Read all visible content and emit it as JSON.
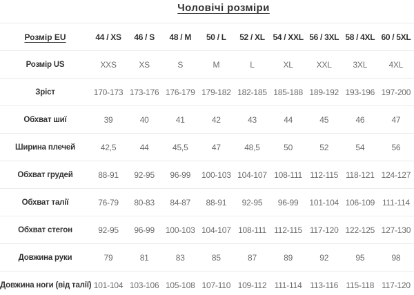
{
  "title": "Чоловічі розміри",
  "table": {
    "header": {
      "label": "Розмір EU",
      "values": [
        "44 / XS",
        "46 / S",
        "48 / M",
        "50 / L",
        "52 / XL",
        "54 / XXL",
        "56 / 3XL",
        "58 / 4XL",
        "60 / 5XL"
      ]
    },
    "rows": [
      {
        "label": "Розмір US",
        "values": [
          "XXS",
          "XS",
          "S",
          "M",
          "L",
          "XL",
          "XXL",
          "3XL",
          "4XL"
        ]
      },
      {
        "label": "Зріст",
        "values": [
          "170-173",
          "173-176",
          "176-179",
          "179-182",
          "182-185",
          "185-188",
          "189-192",
          "193-196",
          "197-200"
        ]
      },
      {
        "label": "Обхват шиї",
        "values": [
          "39",
          "40",
          "41",
          "42",
          "43",
          "44",
          "45",
          "46",
          "47"
        ]
      },
      {
        "label": "Ширина плечей",
        "values": [
          "42,5",
          "44",
          "45,5",
          "47",
          "48,5",
          "50",
          "52",
          "54",
          "56"
        ]
      },
      {
        "label": "Обхват грудей",
        "values": [
          "88-91",
          "92-95",
          "96-99",
          "100-103",
          "104-107",
          "108-111",
          "112-115",
          "118-121",
          "124-127"
        ]
      },
      {
        "label": "Обхват талії",
        "values": [
          "76-79",
          "80-83",
          "84-87",
          "88-91",
          "92-95",
          "96-99",
          "101-104",
          "106-109",
          "111-114"
        ]
      },
      {
        "label": "Обхват стегон",
        "values": [
          "92-95",
          "96-99",
          "100-103",
          "104-107",
          "108-111",
          "112-115",
          "117-120",
          "122-125",
          "127-130"
        ]
      },
      {
        "label": "Довжина руки",
        "values": [
          "79",
          "81",
          "83",
          "85",
          "87",
          "89",
          "92",
          "95",
          "98"
        ]
      },
      {
        "label": "Довжина ноги (від талії)",
        "values": [
          "101-104",
          "103-106",
          "105-108",
          "107-110",
          "109-112",
          "111-114",
          "113-116",
          "115-118",
          "117-120"
        ]
      }
    ]
  },
  "colors": {
    "heading_text": "#333333",
    "value_text": "#6b6b6b",
    "divider": "#ececec",
    "background": "#ffffff"
  }
}
